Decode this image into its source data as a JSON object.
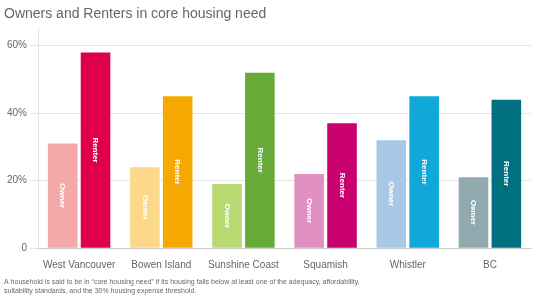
{
  "chart_data": {
    "type": "bar",
    "title": "Owners and Renters in core housing need",
    "footnote": "A household is said to be in “core housing need” if its housing falls below at least one of the adequacy, affordability,\nsuitability standards, and the 30% housing expense threshold.",
    "categories": [
      "West Vancouver",
      "Bowen Island",
      "Sunshine Coast",
      "Squamish",
      "Whistler",
      "BC"
    ],
    "series": [
      {
        "name": "Owner",
        "values": [
          31,
          24,
          19,
          22,
          32,
          21
        ],
        "colors": [
          "#f5a8a8",
          "#fcd98a",
          "#b8d870",
          "#e090c0",
          "#a8c8e8",
          "#90aab0"
        ]
      },
      {
        "name": "Renter",
        "values": [
          58,
          45,
          52,
          37,
          45,
          44
        ],
        "colors": [
          "#e0004a",
          "#f5a800",
          "#68aa38",
          "#c80070",
          "#10a8d8",
          "#007080"
        ]
      }
    ],
    "ylim": [
      0,
      65
    ],
    "yticks": [
      0,
      {
        "value": 20,
        "label": "20%"
      },
      {
        "value": 40,
        "label": "40%"
      },
      {
        "value": 60,
        "label": "60%"
      }
    ],
    "grid": true
  }
}
